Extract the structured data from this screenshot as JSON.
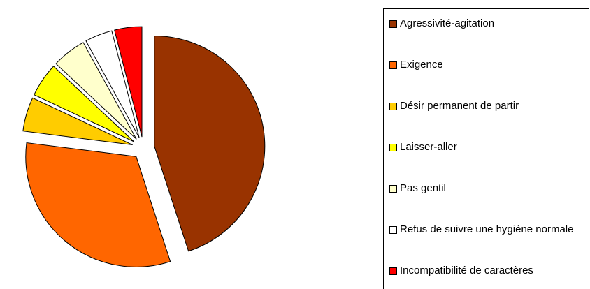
{
  "chart_data": {
    "type": "pie",
    "categories": [
      "Agressivité-agitation",
      "Exigence",
      "Désir permanent de partir",
      "Laisser-aller",
      "Pas gentil",
      "Refus de suivre une hygiène normale",
      "Incompatibilité de caractères"
    ],
    "values": [
      45,
      32,
      5,
      5,
      5,
      4,
      4
    ],
    "colors": [
      "#993300",
      "#ff6600",
      "#ffcc00",
      "#ffff00",
      "#ffffcc",
      "#ffffff",
      "#ff0000"
    ],
    "legend": "right"
  }
}
